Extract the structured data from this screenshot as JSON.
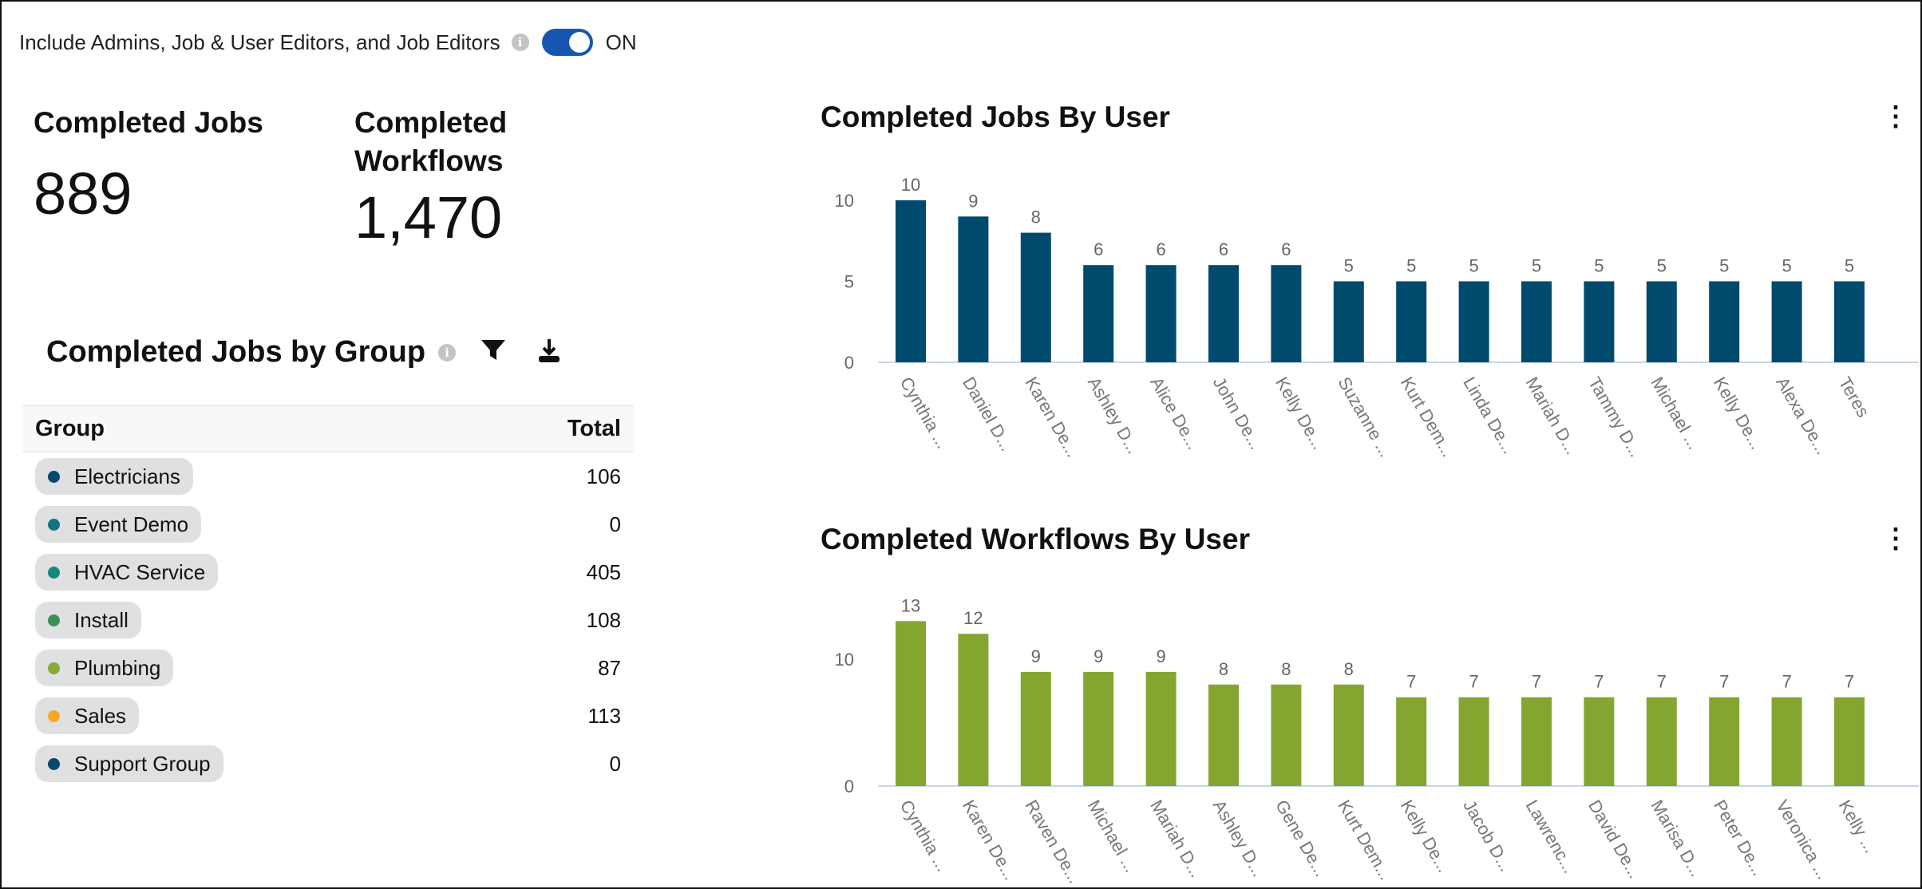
{
  "filter": {
    "label": "Include Admins, Job & User Editors, and Job Editors",
    "toggle_state": "ON",
    "toggle_on": true
  },
  "kpis": [
    {
      "title": "Completed Jobs",
      "value": "889"
    },
    {
      "title": "Completed Workflows",
      "value": "1,470"
    }
  ],
  "group_table": {
    "title": "Completed Jobs by Group",
    "columns": [
      "Group",
      "Total"
    ],
    "rows": [
      {
        "group": "Electricians",
        "total": "106",
        "color": "#054a6e"
      },
      {
        "group": "Event Demo",
        "total": "0",
        "color": "#147285"
      },
      {
        "group": "HVAC Service",
        "total": "405",
        "color": "#12877a"
      },
      {
        "group": "Install",
        "total": "108",
        "color": "#3d8f5a"
      },
      {
        "group": "Plumbing",
        "total": "87",
        "color": "#86ac32"
      },
      {
        "group": "Sales",
        "total": "113",
        "color": "#f6a823"
      },
      {
        "group": "Support Group",
        "total": "0",
        "color": "#054a6e"
      }
    ]
  },
  "chart_data": [
    {
      "type": "bar",
      "title": "Completed Jobs By User",
      "color": "#004a6e",
      "categories": [
        "Cynthia ...",
        "Daniel D...",
        "Karen De...",
        "Ashley D...",
        "Alice De...",
        "John De...",
        "Kelly De...",
        "Suzanne ...",
        "Kurt Dem...",
        "Linda De...",
        "Mariah D...",
        "Tammy D...",
        "Michael ...",
        "Kelly De...",
        "Alexa De...",
        "Teres"
      ],
      "values": [
        10,
        9,
        8,
        6,
        6,
        6,
        6,
        5,
        5,
        5,
        5,
        5,
        5,
        5,
        5,
        5
      ],
      "yticks": [
        0,
        5,
        10
      ],
      "ylim": [
        0,
        10
      ],
      "xlabel": "",
      "ylabel": ""
    },
    {
      "type": "bar",
      "title": "Completed Workflows By User",
      "color": "#84a630",
      "categories": [
        "Cynthia ...",
        "Karen De...",
        "Raven De...",
        "Michael ...",
        "Mariah D...",
        "Ashley D...",
        "Gene De...",
        "Kurt Dem...",
        "Kelly De...",
        "Jacob D...",
        "Lawrenc...",
        "David De...",
        "Marisa D...",
        "Peter De...",
        "Veronica ...",
        "Kelly ..."
      ],
      "values": [
        13,
        12,
        9,
        9,
        9,
        8,
        8,
        8,
        7,
        7,
        7,
        7,
        7,
        7,
        7,
        7
      ],
      "yticks": [
        0,
        10
      ],
      "ylim": [
        0,
        13
      ],
      "xlabel": "",
      "ylabel": ""
    }
  ]
}
